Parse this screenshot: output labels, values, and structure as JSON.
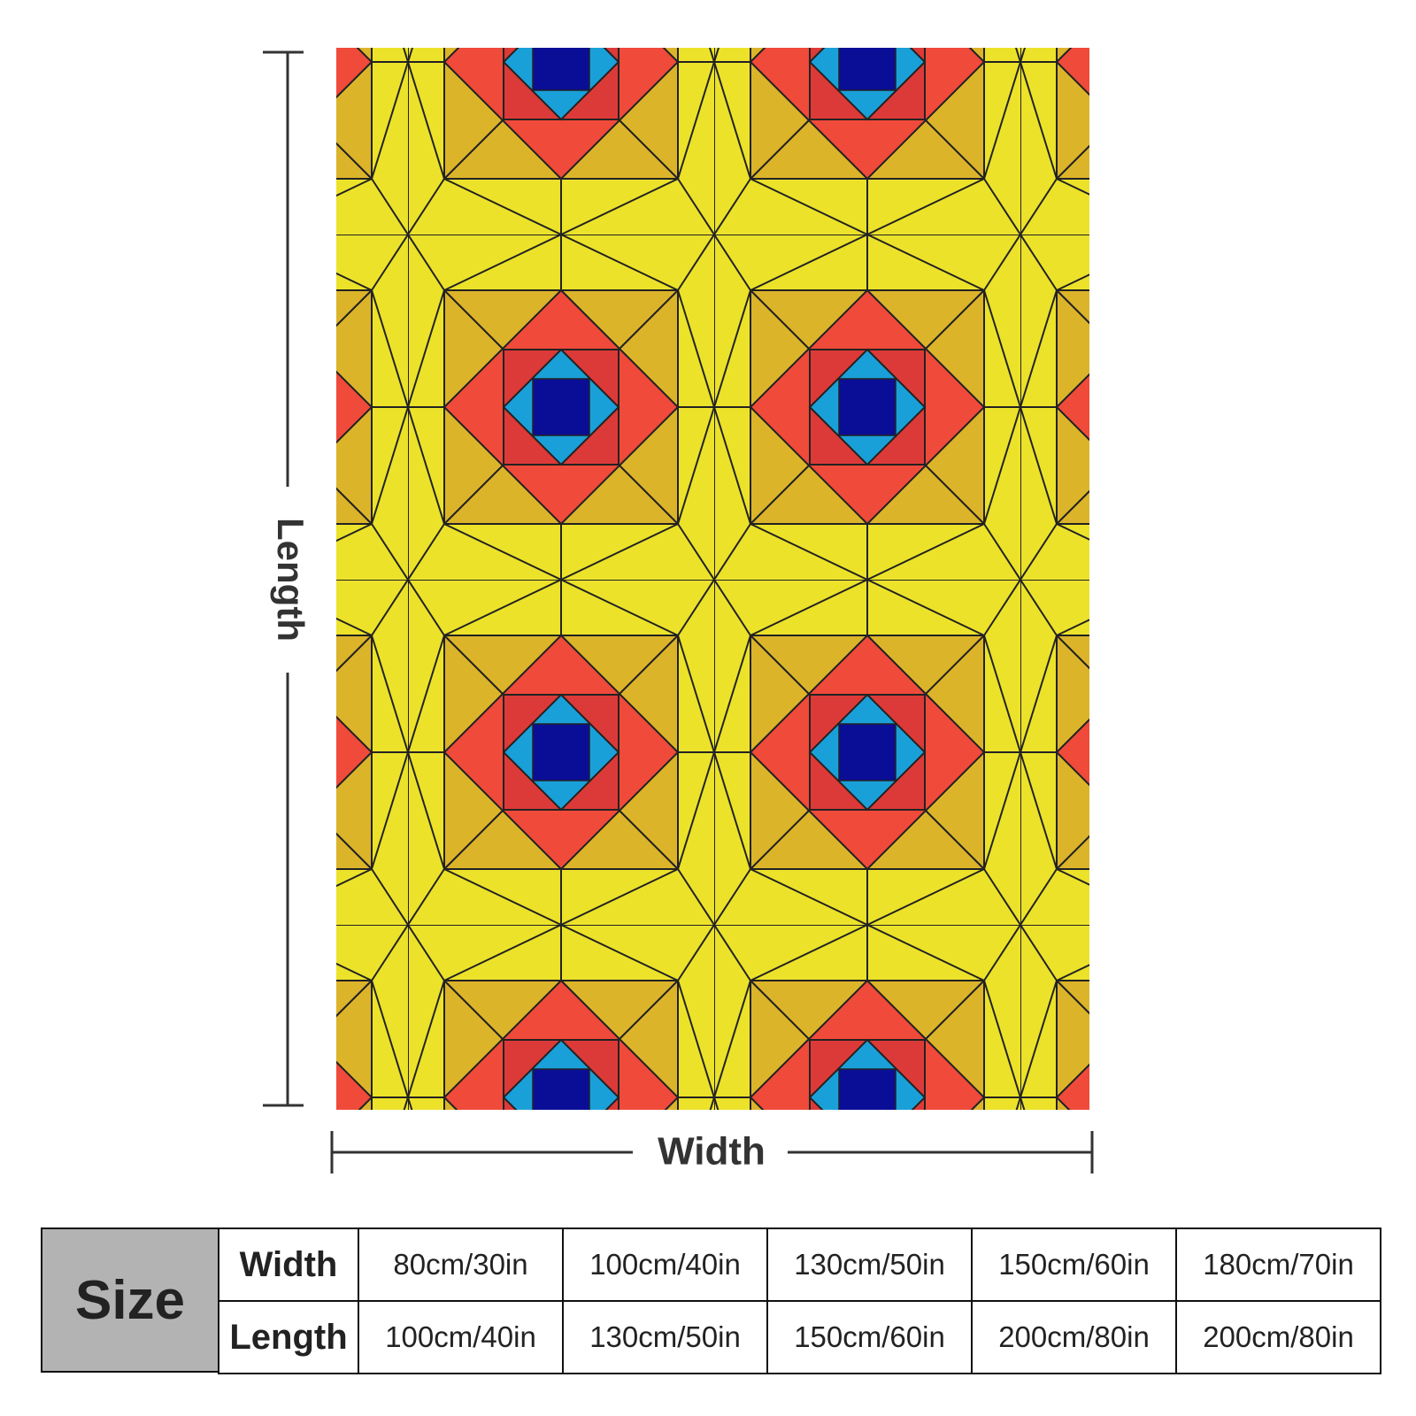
{
  "labels": {
    "length": "Length",
    "width": "Width"
  },
  "table": {
    "corner": "Size",
    "rows": [
      [
        "Width",
        "80cm/30in",
        "100cm/40in",
        "130cm/50in",
        "150cm/60in",
        "180cm/70in"
      ],
      [
        "Length",
        "100cm/40in",
        "130cm/50in",
        "150cm/60in",
        "200cm/80in",
        "200cm/80in"
      ]
    ]
  }
}
